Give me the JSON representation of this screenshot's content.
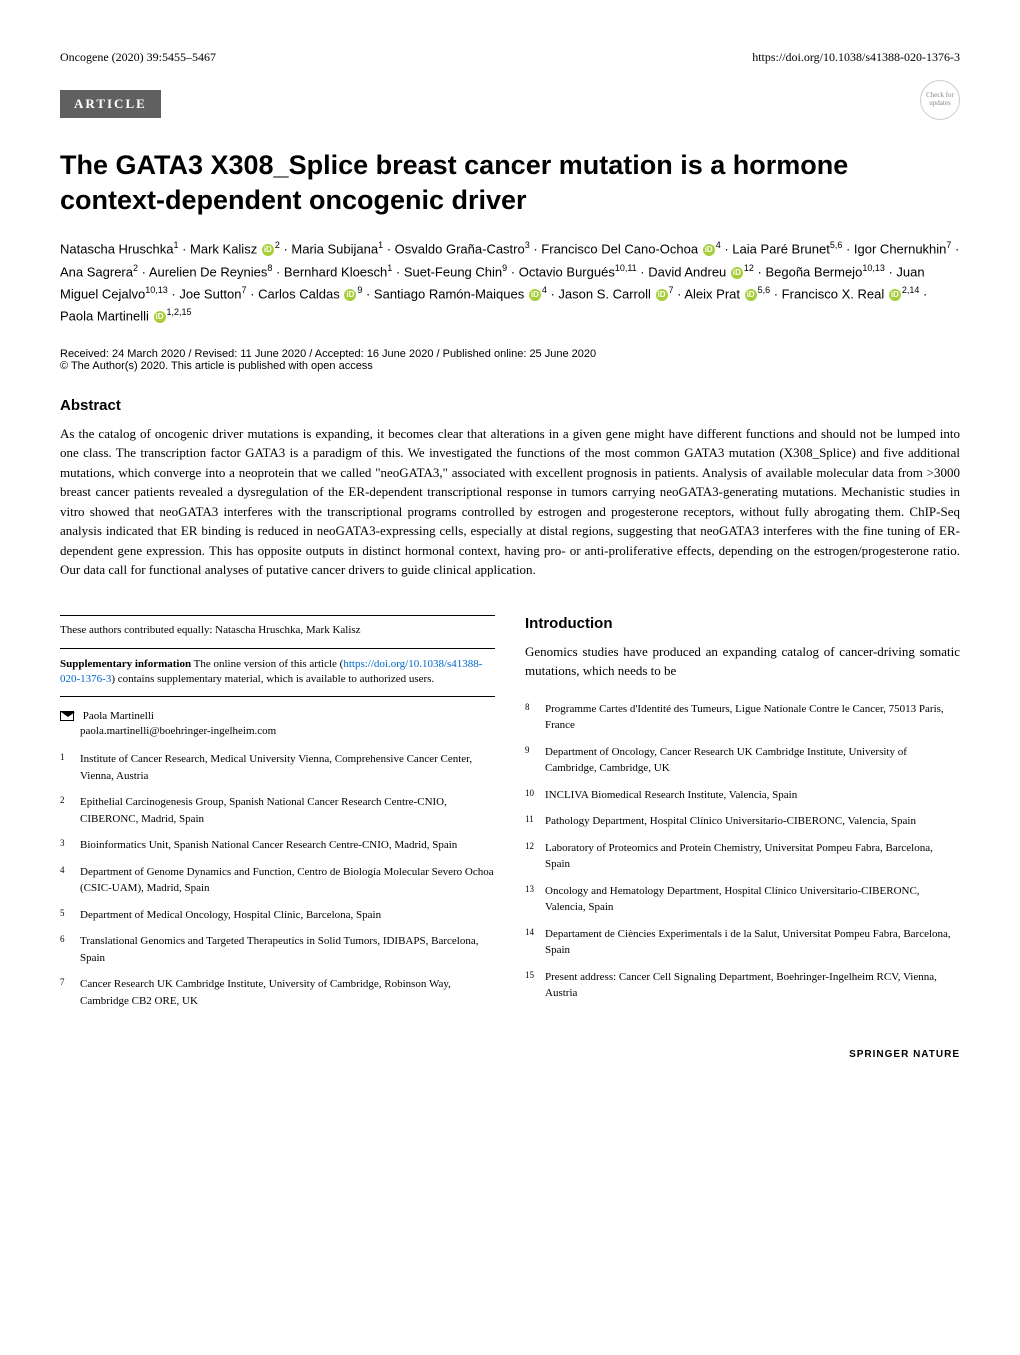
{
  "header": {
    "journal": "Oncogene (2020) 39:5455–5467",
    "doi": "https://doi.org/10.1038/s41388-020-1376-3",
    "article_tag": "ARTICLE",
    "check_updates": "Check for updates"
  },
  "title": "The GATA3 X308_Splice breast cancer mutation is a hormone context-dependent oncogenic driver",
  "authors_html": "Natascha Hruschka<sup>1</sup> · Mark Kalisz <span class=\"orcid\">iD</span><sup>2</sup> · Maria Subijana<sup>1</sup> · Osvaldo Graña-Castro<sup>3</sup> · Francisco Del Cano-Ochoa <span class=\"orcid\">iD</span><sup>4</sup> · Laia Paré Brunet<sup>5,6</sup> · Igor Chernukhin<sup>7</sup> · Ana Sagrera<sup>2</sup> · Aurelien De Reynies<sup>8</sup> · Bernhard Kloesch<sup>1</sup> · Suet-Feung Chin<sup>9</sup> · Octavio Burgués<sup>10,11</sup> · David Andreu <span class=\"orcid\">iD</span><sup>12</sup> · Begoña Bermejo<sup>10,13</sup> · Juan Miguel Cejalvo<sup>10,13</sup> · Joe Sutton<sup>7</sup> · Carlos Caldas <span class=\"orcid\">iD</span><sup>9</sup> · Santiago Ramón-Maiques <span class=\"orcid\">iD</span><sup>4</sup> · Jason S. Carroll <span class=\"orcid\">iD</span><sup>7</sup> · Aleix Prat <span class=\"orcid\">iD</span><sup>5,6</sup> · Francisco X. Real <span class=\"orcid\">iD</span><sup>2,14</sup> · Paola Martinelli <span class=\"orcid\">iD</span><sup>1,2,15</sup>",
  "received": "Received: 24 March 2020 / Revised: 11 June 2020 / Accepted: 16 June 2020 / Published online: 25 June 2020",
  "copyright": "© The Author(s) 2020. This article is published with open access",
  "abstract_heading": "Abstract",
  "abstract": "As the catalog of oncogenic driver mutations is expanding, it becomes clear that alterations in a given gene might have different functions and should not be lumped into one class. The transcription factor GATA3 is a paradigm of this. We investigated the functions of the most common GATA3 mutation (X308_Splice) and five additional mutations, which converge into a neoprotein that we called \"neoGATA3,\" associated with excellent prognosis in patients. Analysis of available molecular data from >3000 breast cancer patients revealed a dysregulation of the ER-dependent transcriptional response in tumors carrying neoGATA3-generating mutations. Mechanistic studies in vitro showed that neoGATA3 interferes with the transcriptional programs controlled by estrogen and progesterone receptors, without fully abrogating them. ChIP-Seq analysis indicated that ER binding is reduced in neoGATA3-expressing cells, especially at distal regions, suggesting that neoGATA3 interferes with the fine tuning of ER-dependent gene expression. This has opposite outputs in distinct hormonal context, having pro- or anti-proliferative effects, depending on the estrogen/progesterone ratio. Our data call for functional analyses of putative cancer drivers to guide clinical application.",
  "contrib_note": "These authors contributed equally: Natascha Hruschka, Mark Kalisz",
  "supp_label": "Supplementary information",
  "supp_text": " The online version of this article (",
  "supp_link": "https://doi.org/10.1038/s41388-020-1376-3",
  "supp_text2": ") contains supplementary material, which is available to authorized users.",
  "corresponding_name": "Paola Martinelli",
  "corresponding_email": "paola.martinelli@boehringer-ingelheim.com",
  "intro_heading": "Introduction",
  "intro_text": "Genomics studies have produced an expanding catalog of cancer-driving somatic mutations, which needs to be",
  "affiliations_left": [
    {
      "n": "1",
      "t": "Institute of Cancer Research, Medical University Vienna, Comprehensive Cancer Center, Vienna, Austria"
    },
    {
      "n": "2",
      "t": "Epithelial Carcinogenesis Group, Spanish National Cancer Research Centre-CNIO, CIBERONC, Madrid, Spain"
    },
    {
      "n": "3",
      "t": "Bioinformatics Unit, Spanish National Cancer Research Centre-CNIO, Madrid, Spain"
    },
    {
      "n": "4",
      "t": "Department of Genome Dynamics and Function, Centro de Biología Molecular Severo Ochoa (CSIC-UAM), Madrid, Spain"
    },
    {
      "n": "5",
      "t": "Department of Medical Oncology, Hospital Clínic, Barcelona, Spain"
    },
    {
      "n": "6",
      "t": "Translational Genomics and Targeted Therapeutics in Solid Tumors, IDIBAPS, Barcelona, Spain"
    },
    {
      "n": "7",
      "t": "Cancer Research UK Cambridge Institute, University of Cambridge, Robinson Way, Cambridge CB2 ORE, UK"
    }
  ],
  "affiliations_right": [
    {
      "n": "8",
      "t": "Programme Cartes d'Identité des Tumeurs, Ligue Nationale Contre le Cancer, 75013 Paris, France"
    },
    {
      "n": "9",
      "t": "Department of Oncology, Cancer Research UK Cambridge Institute, University of Cambridge, Cambridge, UK"
    },
    {
      "n": "10",
      "t": "INCLIVA Biomedical Research Institute, Valencia, Spain"
    },
    {
      "n": "11",
      "t": "Pathology Department, Hospital Clínico Universitario-CIBERONC, Valencia, Spain"
    },
    {
      "n": "12",
      "t": "Laboratory of Proteomics and Protein Chemistry, Universitat Pompeu Fabra, Barcelona, Spain"
    },
    {
      "n": "13",
      "t": "Oncology and Hematology Department, Hospital Clínico Universitario-CIBERONC, Valencia, Spain"
    },
    {
      "n": "14",
      "t": "Departament de Ciències Experimentals i de la Salut, Universitat Pompeu Fabra, Barcelona, Spain"
    },
    {
      "n": "15",
      "t": "Present address: Cancer Cell Signaling Department, Boehringer-Ingelheim RCV, Vienna, Austria"
    }
  ],
  "footer": "SPRINGER NATURE"
}
